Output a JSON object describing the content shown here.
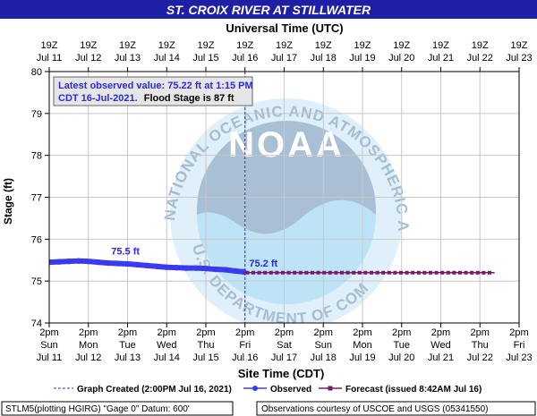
{
  "chart_data": {
    "type": "line",
    "title": "ST. CROIX RIVER AT STILLWATER",
    "top_axis_title": "Universal Time (UTC)",
    "xlabel": "Site Time (CDT)",
    "ylabel": "Stage (ft)",
    "ylim": [
      74,
      80
    ],
    "y_ticks": [
      "74",
      "75",
      "76",
      "77",
      "78",
      "79",
      "80"
    ],
    "grid": true,
    "x_ticks_bottom": [
      {
        "time": "2pm",
        "day": "Sun",
        "date": "Jul 11"
      },
      {
        "time": "2pm",
        "day": "Mon",
        "date": "Jul 12"
      },
      {
        "time": "2pm",
        "day": "Tue",
        "date": "Jul 13"
      },
      {
        "time": "2pm",
        "day": "Wed",
        "date": "Jul 14"
      },
      {
        "time": "2pm",
        "day": "Thu",
        "date": "Jul 15"
      },
      {
        "time": "2pm",
        "day": "Fri",
        "date": "Jul 16"
      },
      {
        "time": "2pm",
        "day": "Sat",
        "date": "Jul 17"
      },
      {
        "time": "2pm",
        "day": "Sun",
        "date": "Jul 18"
      },
      {
        "time": "2pm",
        "day": "Mon",
        "date": "Jul 19"
      },
      {
        "time": "2pm",
        "day": "Tue",
        "date": "Jul 20"
      },
      {
        "time": "2pm",
        "day": "Wed",
        "date": "Jul 21"
      },
      {
        "time": "2pm",
        "day": "Thu",
        "date": "Jul 22"
      },
      {
        "time": "2pm",
        "day": "Fri",
        "date": "Jul 23"
      }
    ],
    "x_ticks_top": [
      {
        "time": "19Z",
        "date": "Jul 11"
      },
      {
        "time": "19Z",
        "date": "Jul 12"
      },
      {
        "time": "19Z",
        "date": "Jul 13"
      },
      {
        "time": "19Z",
        "date": "Jul 14"
      },
      {
        "time": "19Z",
        "date": "Jul 15"
      },
      {
        "time": "19Z",
        "date": "Jul 16"
      },
      {
        "time": "19Z",
        "date": "Jul 17"
      },
      {
        "time": "19Z",
        "date": "Jul 18"
      },
      {
        "time": "19Z",
        "date": "Jul 19"
      },
      {
        "time": "19Z",
        "date": "Jul 20"
      },
      {
        "time": "19Z",
        "date": "Jul 21"
      },
      {
        "time": "19Z",
        "date": "Jul 22"
      },
      {
        "time": "19Z",
        "date": "Jul 23"
      }
    ],
    "series": [
      {
        "name": "Observed",
        "color": "#3a3af0",
        "x": [
          "2021-07-11 14:00",
          "2021-07-11 20:00",
          "2021-07-12 02:00",
          "2021-07-12 08:00",
          "2021-07-12 14:00",
          "2021-07-12 20:00",
          "2021-07-13 02:00",
          "2021-07-13 08:00",
          "2021-07-13 14:00",
          "2021-07-13 20:00",
          "2021-07-14 02:00",
          "2021-07-14 08:00",
          "2021-07-14 14:00",
          "2021-07-14 20:00",
          "2021-07-15 02:00",
          "2021-07-15 08:00",
          "2021-07-15 14:00",
          "2021-07-15 20:00",
          "2021-07-16 02:00",
          "2021-07-16 08:00",
          "2021-07-16 13:15"
        ],
        "y": [
          75.45,
          75.46,
          75.47,
          75.48,
          75.47,
          75.45,
          75.43,
          75.42,
          75.41,
          75.39,
          75.37,
          75.35,
          75.33,
          75.32,
          75.31,
          75.31,
          75.3,
          75.28,
          75.27,
          75.24,
          75.22
        ]
      },
      {
        "name": "Forecast (issued 8:42AM Jul 16)",
        "color": "#7a1a6a",
        "x": [
          "2021-07-16 13:15",
          "2021-07-17 00:00",
          "2021-07-18 00:00",
          "2021-07-19 00:00",
          "2021-07-20 00:00",
          "2021-07-21 00:00",
          "2021-07-22 00:00",
          "2021-07-22 23:00"
        ],
        "y": [
          75.2,
          75.2,
          75.2,
          75.2,
          75.2,
          75.2,
          75.2,
          75.2
        ]
      }
    ],
    "graph_created": "2021-07-16 14:00",
    "annotations": {
      "max_label": "75.5 ft",
      "last_label": "75.2 ft",
      "latest_line1": "Latest observed value: 75.22 ft at 1:15 PM",
      "latest_line2": "CDT 16-Jul-2021.",
      "flood_stage_text": "Flood Stage is 87 ft"
    },
    "legend": {
      "created": "Graph Created (2:00PM Jul 16, 2021)",
      "observed": "Observed",
      "forecast": "Forecast (issued 8:42AM Jul 16)"
    },
    "footer_left": "STLM5(plotting HGIRG) \"Gage 0\" Datum: 600'",
    "footer_right": "Observations courtesy of USCOE and USGS (05341550)",
    "watermark_text": "NATIONAL OCEANIC AND ATMOSPHERIC ADMINISTRATION",
    "watermark_text_bottom": "U.S. DEPARTMENT OF COMMERCE",
    "watermark_logo": "NOAA"
  },
  "colors": {
    "title_bar": "#1f1fa6",
    "observed": "#3a3af0",
    "forecast": "#7a1a6a",
    "created_line": "#3333cc",
    "grid": "#c8c8c8",
    "noaa_light": "#b8dcf0",
    "noaa_dark": "#9fb5cc"
  }
}
